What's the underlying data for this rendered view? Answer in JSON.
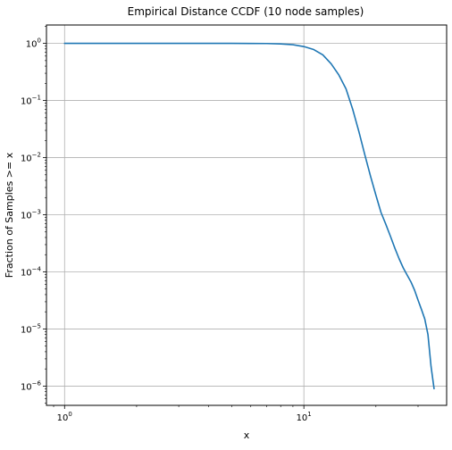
{
  "chart_data": {
    "type": "line",
    "title": "Empirical Distance CCDF (10 node samples)",
    "xlabel": "x",
    "ylabel": "Fraction of Samples >= x",
    "xscale": "log",
    "yscale": "log",
    "grid": true,
    "xlim": [
      0.84,
      39.5
    ],
    "ylim": [
      4.6e-07,
      2.1
    ],
    "xticks": [
      {
        "value": 1,
        "base": "10",
        "exp": "0"
      },
      {
        "value": 10,
        "base": "10",
        "exp": "1"
      }
    ],
    "yticks": [
      {
        "value": 1,
        "base": "10",
        "exp": "0"
      },
      {
        "value": 0.1,
        "base": "10",
        "exp": "−1"
      },
      {
        "value": 0.01,
        "base": "10",
        "exp": "−2"
      },
      {
        "value": 0.001,
        "base": "10",
        "exp": "−3"
      },
      {
        "value": 0.0001,
        "base": "10",
        "exp": "−4"
      },
      {
        "value": 1e-05,
        "base": "10",
        "exp": "−5"
      },
      {
        "value": 1e-06,
        "base": "10",
        "exp": "−6"
      }
    ],
    "series": [
      {
        "color": "#1f77b4",
        "x": [
          1,
          2,
          3,
          4,
          5,
          6,
          7,
          8,
          9,
          10,
          11,
          12,
          13,
          14,
          15,
          16,
          17,
          18,
          19,
          20,
          21,
          22,
          23,
          24,
          25,
          26,
          27,
          28,
          29,
          30,
          31,
          32,
          33,
          34,
          35
        ],
        "y": [
          1,
          1,
          1,
          1,
          1,
          0.999,
          0.995,
          0.98,
          0.95,
          0.88,
          0.78,
          0.63,
          0.44,
          0.28,
          0.16,
          0.07,
          0.028,
          0.011,
          0.0047,
          0.0022,
          0.0011,
          0.00068,
          0.00042,
          0.00026,
          0.00017,
          0.000118,
          8.8e-05,
          6.7e-05,
          4.8e-05,
          3.2e-05,
          2.2e-05,
          1.5e-05,
          8e-06,
          2.2e-06,
          9e-07
        ]
      }
    ]
  }
}
